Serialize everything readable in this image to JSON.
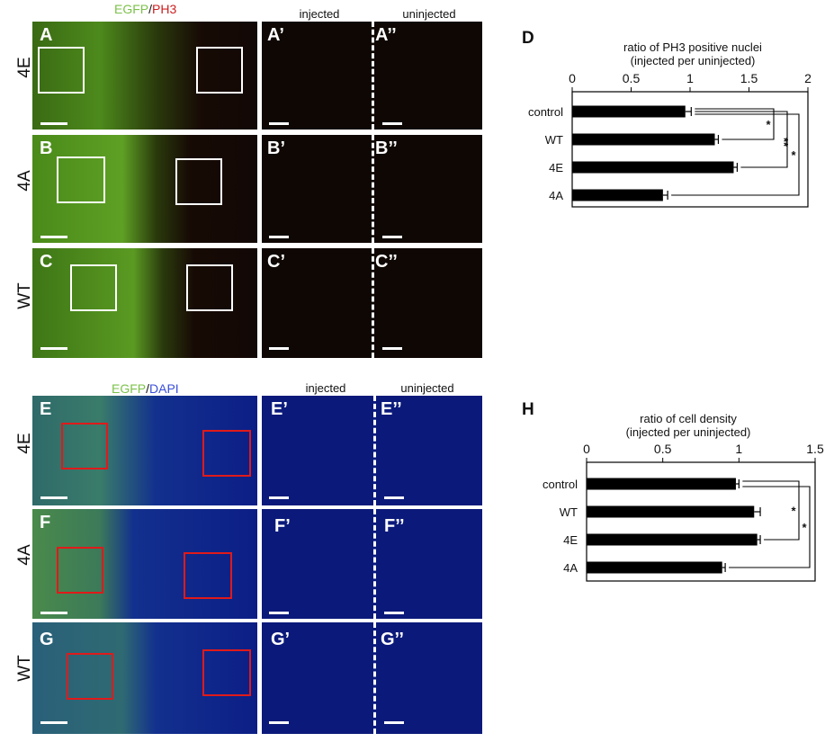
{
  "top_header": {
    "egfp": "EGFP",
    "slash": "/",
    "marker": "PH3",
    "injected": "injected",
    "uninjected": "uninjected"
  },
  "bottom_header": {
    "egfp": "EGFP",
    "slash": "/",
    "marker": "DAPI",
    "injected": "injected",
    "uninjected": "uninjected"
  },
  "rows_top": [
    {
      "row_label": "4E",
      "main": "A",
      "inj": "A’",
      "uninj": "A’’"
    },
    {
      "row_label": "4A",
      "main": "B",
      "inj": "B’",
      "uninj": "B’’"
    },
    {
      "row_label": "WT",
      "main": "C",
      "inj": "C’",
      "uninj": "C’’"
    }
  ],
  "rows_bottom": [
    {
      "row_label": "4E",
      "main": "E",
      "inj": "E’",
      "uninj": "E’’"
    },
    {
      "row_label": "4A",
      "main": "F",
      "inj": "F’",
      "uninj": "F’’"
    },
    {
      "row_label": "WT",
      "main": "G",
      "inj": "G’",
      "uninj": "G’’"
    }
  ],
  "colors": {
    "egfp": "#7cc24a",
    "ph3": "#cc1f1f",
    "dapi": "#3a4fd8",
    "bar": "#000000"
  },
  "chart_data": [
    {
      "panel_letter": "D",
      "type": "bar",
      "orientation": "horizontal",
      "title": "ratio of PH3 positive nuclei",
      "subtitle": "(injected per uninjected)",
      "categories": [
        "control",
        "WT",
        "4E",
        "4A"
      ],
      "values": [
        0.96,
        1.21,
        1.37,
        0.77
      ],
      "errors": [
        0.05,
        0.03,
        0.03,
        0.04
      ],
      "xlim": [
        0,
        2
      ],
      "ticks": [
        "0",
        "0.5",
        "1",
        "1.5",
        "2"
      ],
      "tick_values": [
        0,
        0.5,
        1,
        1.5,
        2
      ],
      "significance": [
        "*",
        "**",
        "*"
      ]
    },
    {
      "panel_letter": "H",
      "type": "bar",
      "orientation": "horizontal",
      "title": "ratio of cell density",
      "subtitle": "(injected per uninjected)",
      "categories": [
        "control",
        "WT",
        "4E",
        "4A"
      ],
      "values": [
        0.98,
        1.1,
        1.12,
        0.89
      ],
      "errors": [
        0.02,
        0.04,
        0.02,
        0.02
      ],
      "xlim": [
        0,
        1.5
      ],
      "ticks": [
        "0",
        "0.5",
        "1",
        "1.5"
      ],
      "tick_values": [
        0,
        0.5,
        1,
        1.5
      ],
      "significance": [
        "*",
        "*"
      ]
    }
  ]
}
